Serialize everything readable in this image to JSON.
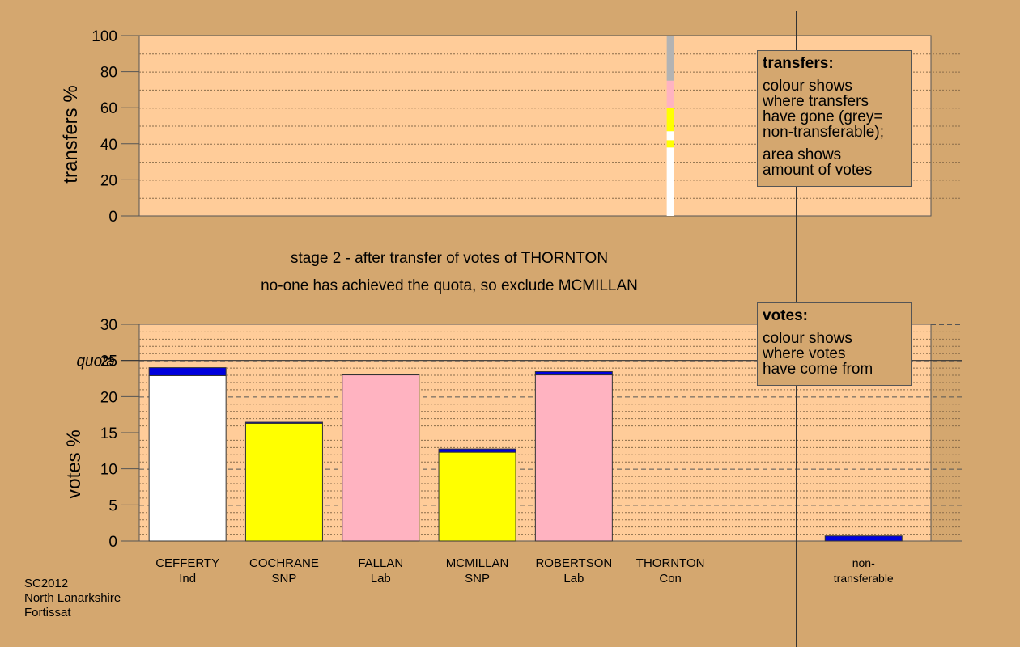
{
  "chart_data": [
    {
      "type": "bar",
      "ylabel": "transfers %",
      "ylim": [
        0,
        100
      ],
      "yticks": [
        0,
        20,
        40,
        60,
        80,
        100
      ],
      "transfer_bar": {
        "candidate": "THORNTON",
        "segments": [
          {
            "from": 0,
            "to": 38,
            "color": "#ffffff"
          },
          {
            "from": 38,
            "to": 42,
            "color": "#ffff00"
          },
          {
            "from": 42,
            "to": 47,
            "color": "#ffffff"
          },
          {
            "from": 47,
            "to": 60,
            "color": "#ffff00"
          },
          {
            "from": 60,
            "to": 75,
            "color": "#ffb3c1"
          },
          {
            "from": 75,
            "to": 100,
            "color": "#b3b3b3"
          }
        ]
      }
    },
    {
      "type": "bar",
      "ylabel": "votes %",
      "ylim": [
        0,
        30
      ],
      "yticks": [
        0,
        5,
        10,
        15,
        20,
        25,
        30
      ],
      "quota": 25,
      "quota_label": "quota",
      "categories": [
        {
          "name": "CEFFERTY",
          "party": "Ind"
        },
        {
          "name": "COCHRANE",
          "party": "SNP"
        },
        {
          "name": "FALLAN",
          "party": "Lab"
        },
        {
          "name": "MCMILLAN",
          "party": "SNP"
        },
        {
          "name": "ROBERTSON",
          "party": "Lab"
        },
        {
          "name": "THORNTON",
          "party": "Con"
        }
      ],
      "nontransferable_label": [
        "non-",
        "transferable"
      ],
      "bars": [
        {
          "base": 22.9,
          "base_color": "#ffffff",
          "transfer": 1.1
        },
        {
          "base": 16.3,
          "base_color": "#ffff00",
          "transfer": 0.15
        },
        {
          "base": 23.0,
          "base_color": "#ffb3c1",
          "transfer": 0.1
        },
        {
          "base": 12.3,
          "base_color": "#ffff00",
          "transfer": 0.45
        },
        {
          "base": 23.0,
          "base_color": "#ffb3c1",
          "transfer": 0.45
        },
        {
          "base": 0,
          "base_color": "#ffffff",
          "transfer": 0
        }
      ],
      "nontransferable": {
        "base": 0,
        "transfer": 0.7
      },
      "transfer_color": "#0000dd"
    }
  ],
  "caption": {
    "line1": "stage 2 - after transfer of votes of THORNTON",
    "line2": "no-one has achieved the quota, so exclude MCMILLAN"
  },
  "legend_transfers": {
    "title": "transfers:",
    "lines": [
      "colour shows",
      "where transfers",
      "have gone (grey=",
      "non-transferable);"
    ],
    "lines2": [
      "area shows",
      "amount of votes"
    ]
  },
  "legend_votes": {
    "title": "votes:",
    "lines": [
      "colour shows",
      "where votes",
      "have come from"
    ]
  },
  "footer": [
    "SC2012",
    "North Lanarkshire",
    "Fortissat"
  ],
  "colors": {
    "background": "#d4a76f",
    "plot_bg": "#ffcc99",
    "transfer": "#0000dd"
  }
}
